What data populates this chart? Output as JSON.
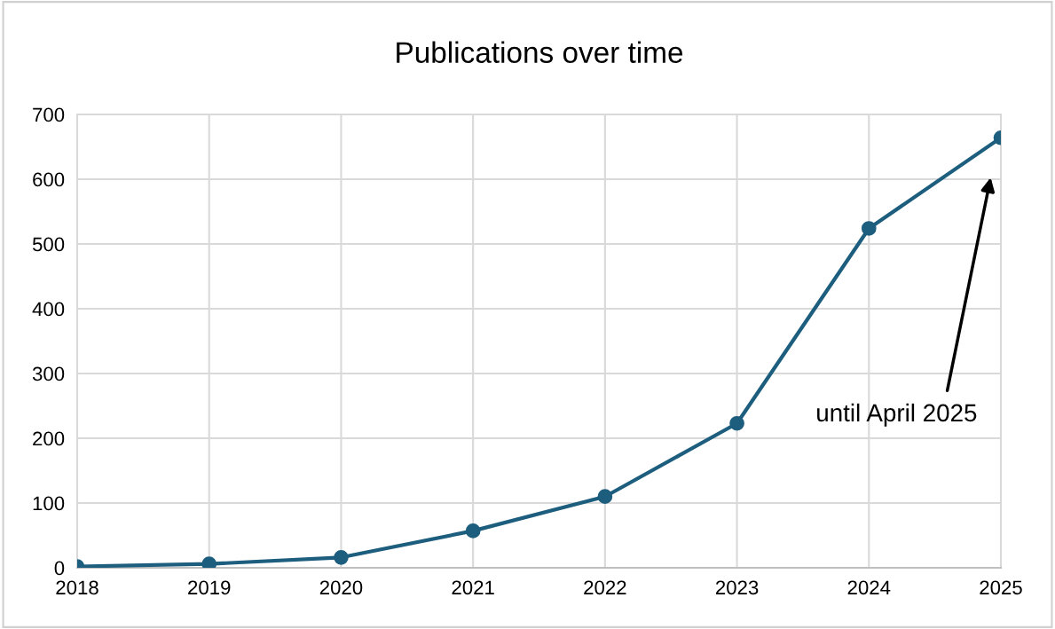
{
  "chart_data": {
    "type": "line",
    "title": "Publications over time",
    "x": [
      2018,
      2019,
      2020,
      2021,
      2022,
      2023,
      2024,
      2025
    ],
    "series": [
      {
        "color": "#1d5e7e",
        "values": [
          2,
          6,
          16,
          57,
          110,
          223,
          524,
          664
        ]
      }
    ],
    "xlim": [
      2018,
      2025
    ],
    "xticks": [
      2018,
      2019,
      2020,
      2021,
      2022,
      2023,
      2024,
      2025
    ],
    "ylim": [
      0,
      700
    ],
    "yticks": [
      0,
      100,
      200,
      300,
      400,
      500,
      600,
      700
    ],
    "grid": true,
    "marker": "circle",
    "line_style": "solid",
    "legend": false,
    "annotations": [
      "until April 2025"
    ]
  }
}
